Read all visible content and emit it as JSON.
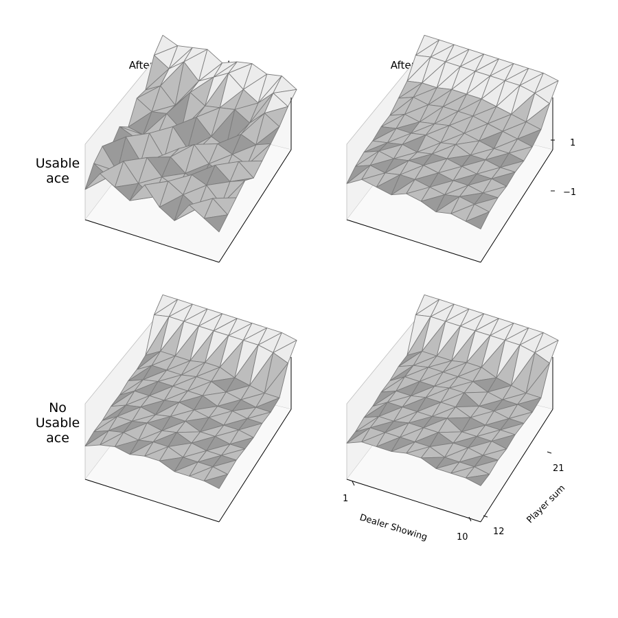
{
  "colors": {
    "pane": "#f2f2f2",
    "pane_edge": "#bdbdbd",
    "surface_light": "#ececec",
    "surface_dark": "#9a9a9a",
    "mesh": "#7a7a7a",
    "axis": "#000000"
  },
  "column_titles": [
    "After 10,000 episodes",
    "After 50,000 episodes"
  ],
  "row_labels": [
    [
      "Usable",
      "ace"
    ],
    [
      "No",
      "Usable",
      "ace"
    ]
  ],
  "z_ticks": [
    "1",
    "−1"
  ],
  "x_ticks": [
    "1",
    "10"
  ],
  "y_ticks": [
    "12",
    "21"
  ],
  "x_label": "Dealer Showing",
  "y_label": "Player sum",
  "chart_data": [
    {
      "type": "surface",
      "title": "After 10,000 episodes",
      "row_label": "Usable ace",
      "x": [
        1,
        2,
        3,
        4,
        5,
        6,
        7,
        8,
        9,
        10
      ],
      "y": [
        12,
        13,
        14,
        15,
        16,
        17,
        18,
        19,
        20,
        21
      ],
      "zlim": [
        -1,
        1
      ],
      "z": [
        [
          -0.9,
          -0.2,
          -0.5,
          -0.8,
          -0.1,
          -0.7,
          -1.0,
          -0.3,
          -0.6,
          -0.9
        ],
        [
          -0.4,
          -0.7,
          0.0,
          -0.6,
          -0.9,
          -0.2,
          -0.5,
          -0.8,
          -0.3,
          -0.7
        ],
        [
          -0.2,
          -0.9,
          -0.4,
          -0.1,
          -0.6,
          -0.8,
          -0.2,
          -0.4,
          -0.9,
          -0.5
        ],
        [
          -0.6,
          -0.1,
          -0.8,
          -0.5,
          -0.3,
          -0.7,
          -0.9,
          -0.1,
          -0.5,
          -0.3
        ],
        [
          -0.3,
          -0.5,
          -0.2,
          -0.9,
          -0.4,
          -0.1,
          -0.6,
          -0.8,
          -0.2,
          -0.6
        ],
        [
          -0.7,
          -0.8,
          -0.6,
          -0.2,
          -0.8,
          -0.5,
          -0.3,
          -0.5,
          -0.7,
          -0.4
        ],
        [
          -0.1,
          -0.4,
          -0.3,
          -0.7,
          -0.1,
          -0.6,
          -0.8,
          -0.2,
          -0.4,
          -0.2
        ],
        [
          -0.2,
          0.1,
          -0.4,
          0.2,
          -0.1,
          0.0,
          0.1,
          -0.2,
          0.3,
          0.0
        ],
        [
          0.6,
          0.3,
          0.7,
          0.2,
          0.5,
          0.8,
          0.4,
          0.1,
          0.6,
          0.3
        ],
        [
          0.9,
          0.7,
          0.8,
          0.9,
          0.6,
          0.8,
          0.9,
          0.7,
          0.8,
          0.5
        ]
      ]
    },
    {
      "type": "surface",
      "title": "After 50,000 episodes",
      "row_label": "Usable ace",
      "x": [
        1,
        2,
        3,
        4,
        5,
        6,
        7,
        8,
        9,
        10
      ],
      "y": [
        12,
        13,
        14,
        15,
        16,
        17,
        18,
        19,
        20,
        21
      ],
      "zlim": [
        -1,
        1
      ],
      "z": [
        [
          -0.7,
          -0.4,
          -0.5,
          -0.6,
          -0.4,
          -0.5,
          -0.7,
          -0.6,
          -0.7,
          -0.8
        ],
        [
          -0.5,
          -0.3,
          -0.4,
          -0.3,
          -0.3,
          -0.4,
          -0.5,
          -0.4,
          -0.5,
          -0.6
        ],
        [
          -0.4,
          -0.2,
          -0.3,
          -0.2,
          -0.2,
          -0.3,
          -0.4,
          -0.4,
          -0.5,
          -0.5
        ],
        [
          -0.4,
          -0.3,
          -0.2,
          -0.3,
          -0.2,
          -0.2,
          -0.3,
          -0.4,
          -0.4,
          -0.5
        ],
        [
          -0.3,
          -0.2,
          -0.2,
          -0.1,
          -0.2,
          -0.1,
          -0.3,
          -0.3,
          -0.4,
          -0.4
        ],
        [
          -0.3,
          -0.1,
          -0.2,
          -0.1,
          0.0,
          -0.1,
          -0.2,
          -0.3,
          -0.3,
          -0.4
        ],
        [
          -0.1,
          0.1,
          0.0,
          0.1,
          0.1,
          0.1,
          0.0,
          -0.1,
          -0.2,
          -0.3
        ],
        [
          0.1,
          0.2,
          0.2,
          0.3,
          0.3,
          0.3,
          0.2,
          0.1,
          0.0,
          -0.1
        ],
        [
          0.6,
          0.7,
          0.7,
          0.7,
          0.7,
          0.7,
          0.7,
          0.7,
          0.6,
          0.4
        ],
        [
          0.9,
          0.9,
          0.9,
          0.9,
          0.9,
          0.9,
          0.9,
          0.9,
          0.9,
          0.8
        ]
      ]
    },
    {
      "type": "surface",
      "title": "After 10,000 episodes",
      "row_label": "No Usable ace",
      "x": [
        1,
        2,
        3,
        4,
        5,
        6,
        7,
        8,
        9,
        10
      ],
      "y": [
        12,
        13,
        14,
        15,
        16,
        17,
        18,
        19,
        20,
        21
      ],
      "zlim": [
        -1,
        1
      ],
      "z": [
        [
          -0.8,
          -0.6,
          -0.5,
          -0.6,
          -0.5,
          -0.5,
          -0.7,
          -0.7,
          -0.7,
          -0.8
        ],
        [
          -0.7,
          -0.5,
          -0.4,
          -0.5,
          -0.4,
          -0.4,
          -0.6,
          -0.6,
          -0.6,
          -0.7
        ],
        [
          -0.7,
          -0.4,
          -0.4,
          -0.3,
          -0.4,
          -0.3,
          -0.5,
          -0.6,
          -0.6,
          -0.6
        ],
        [
          -0.6,
          -0.4,
          -0.3,
          -0.4,
          -0.3,
          -0.3,
          -0.5,
          -0.5,
          -0.6,
          -0.6
        ],
        [
          -0.6,
          -0.3,
          -0.3,
          -0.3,
          -0.2,
          -0.3,
          -0.4,
          -0.5,
          -0.5,
          -0.6
        ],
        [
          -0.5,
          -0.3,
          -0.2,
          -0.2,
          -0.2,
          -0.2,
          -0.4,
          -0.4,
          -0.5,
          -0.5
        ],
        [
          -0.5,
          -0.2,
          -0.2,
          -0.2,
          -0.1,
          -0.1,
          -0.3,
          -0.4,
          -0.5,
          -0.5
        ],
        [
          -0.4,
          -0.1,
          -0.1,
          -0.1,
          0.0,
          0.0,
          -0.2,
          -0.3,
          -0.4,
          -0.4
        ],
        [
          0.6,
          0.7,
          0.7,
          0.7,
          0.7,
          0.7,
          0.7,
          0.7,
          0.6,
          0.4
        ],
        [
          0.9,
          0.9,
          0.9,
          0.9,
          0.9,
          0.9,
          0.9,
          0.9,
          0.9,
          0.8
        ]
      ]
    },
    {
      "type": "surface",
      "title": "After 50,000 episodes",
      "row_label": "No Usable ace",
      "x": [
        1,
        2,
        3,
        4,
        5,
        6,
        7,
        8,
        9,
        10
      ],
      "y": [
        12,
        13,
        14,
        15,
        16,
        17,
        18,
        19,
        20,
        21
      ],
      "zlim": [
        -1,
        1
      ],
      "x_label": "Dealer Showing",
      "y_label": "Player sum",
      "z": [
        [
          -0.7,
          -0.5,
          -0.5,
          -0.5,
          -0.4,
          -0.4,
          -0.6,
          -0.6,
          -0.6,
          -0.7
        ],
        [
          -0.7,
          -0.4,
          -0.4,
          -0.4,
          -0.4,
          -0.4,
          -0.6,
          -0.6,
          -0.6,
          -0.7
        ],
        [
          -0.6,
          -0.4,
          -0.4,
          -0.3,
          -0.3,
          -0.3,
          -0.5,
          -0.5,
          -0.6,
          -0.6
        ],
        [
          -0.6,
          -0.3,
          -0.3,
          -0.3,
          -0.3,
          -0.2,
          -0.5,
          -0.5,
          -0.5,
          -0.6
        ],
        [
          -0.5,
          -0.3,
          -0.3,
          -0.2,
          -0.2,
          -0.2,
          -0.4,
          -0.5,
          -0.5,
          -0.5
        ],
        [
          -0.5,
          -0.2,
          -0.2,
          -0.2,
          -0.1,
          -0.1,
          -0.4,
          -0.4,
          -0.5,
          -0.5
        ],
        [
          -0.4,
          -0.2,
          -0.1,
          -0.1,
          -0.1,
          -0.1,
          -0.3,
          -0.4,
          -0.4,
          -0.5
        ],
        [
          -0.4,
          -0.1,
          -0.1,
          -0.1,
          0.0,
          0.0,
          -0.2,
          -0.3,
          -0.4,
          -0.4
        ],
        [
          0.6,
          0.7,
          0.7,
          0.7,
          0.7,
          0.7,
          0.7,
          0.7,
          0.6,
          0.4
        ],
        [
          0.9,
          0.9,
          0.9,
          0.9,
          0.9,
          0.9,
          0.9,
          0.9,
          0.9,
          0.8
        ]
      ]
    }
  ]
}
